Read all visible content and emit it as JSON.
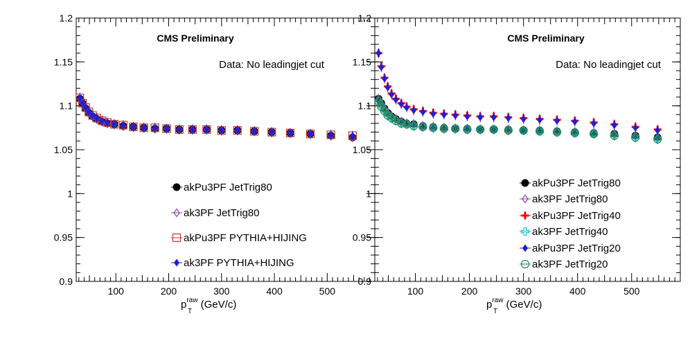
{
  "chart_data": [
    {
      "type": "scatter",
      "title": "CMS Preliminary",
      "annotation": "Data: No leadingjet cut",
      "xlabel": "p_T^raw (GeV/c)",
      "xlabel_parts": {
        "main": "p",
        "sub": "T",
        "sup": "raw",
        "rest": " (GeV/c)"
      },
      "ylabel": "",
      "xlim": [
        25,
        590
      ],
      "ylim": [
        0.9,
        1.2
      ],
      "x_ticks": [
        100,
        200,
        300,
        400,
        500
      ],
      "y_ticks": [
        0.9,
        0.95,
        1,
        1.05,
        1.1,
        1.15,
        1.2
      ],
      "y_tick_labels": [
        "0.9",
        "0.95",
        "1",
        "1.05",
        "1.1",
        "1.15",
        "1.2"
      ],
      "grid": false,
      "legend_position": "bottom-center",
      "x": [
        32,
        37,
        43,
        49,
        56,
        64,
        74,
        84,
        97,
        114,
        133,
        153,
        174,
        196,
        220,
        245,
        272,
        300,
        330,
        362,
        395,
        430,
        468,
        507,
        548,
        592
      ],
      "series": [
        {
          "name": "akPu3PF JetTrig80",
          "marker": "circle-filled",
          "color": "#000000",
          "x": [
            32,
            37,
            43,
            49,
            56,
            64,
            74,
            84,
            97,
            114,
            133,
            153,
            174,
            196,
            220,
            245,
            272,
            300,
            330,
            362,
            395,
            430,
            468,
            507,
            548,
            592
          ],
          "values": [
            1.108,
            1.103,
            1.097,
            1.092,
            1.088,
            1.085,
            1.082,
            1.08,
            1.079,
            1.077,
            1.076,
            1.075,
            1.074,
            1.074,
            1.073,
            1.073,
            1.073,
            1.072,
            1.072,
            1.071,
            1.07,
            1.069,
            1.068,
            1.066,
            1.064,
            1.062
          ]
        },
        {
          "name": "ak3PF JetTrig80",
          "marker": "diamond-open",
          "color": "#8e44ad",
          "x": [
            32,
            37,
            43,
            49,
            56,
            64,
            74,
            84,
            97,
            114,
            133,
            153,
            174,
            196,
            220,
            245,
            272,
            300,
            330,
            362,
            395,
            430,
            468,
            507,
            548,
            592
          ],
          "values": [
            1.108,
            1.103,
            1.097,
            1.092,
            1.088,
            1.085,
            1.082,
            1.08,
            1.079,
            1.077,
            1.076,
            1.075,
            1.074,
            1.074,
            1.073,
            1.073,
            1.073,
            1.072,
            1.072,
            1.071,
            1.07,
            1.069,
            1.068,
            1.066,
            1.064,
            1.062
          ]
        },
        {
          "name": "akPu3PF PYTHIA+HIJING",
          "marker": "square-open",
          "color": "#c0392b",
          "x": [
            32,
            37,
            43,
            49,
            56,
            64,
            74,
            84,
            97,
            114,
            133,
            153,
            174,
            196,
            220,
            245,
            272,
            300,
            330,
            362,
            395,
            430,
            468,
            507,
            548,
            592
          ],
          "values": [
            1.109,
            1.103,
            1.098,
            1.093,
            1.089,
            1.086,
            1.083,
            1.081,
            1.079,
            1.078,
            1.076,
            1.075,
            1.075,
            1.074,
            1.073,
            1.073,
            1.073,
            1.072,
            1.072,
            1.071,
            1.07,
            1.069,
            1.068,
            1.067,
            1.066,
            1.064
          ]
        },
        {
          "name": "ak3PF PYTHIA+HIJING",
          "marker": "diamond-filled",
          "color": "#1f1fd6",
          "x": [
            32,
            37,
            43,
            49,
            56,
            64,
            74,
            84,
            97,
            114,
            133,
            153,
            174,
            196,
            220,
            245,
            272,
            300,
            330,
            362,
            395,
            430,
            468,
            507,
            548,
            592
          ],
          "values": [
            1.109,
            1.103,
            1.098,
            1.093,
            1.089,
            1.086,
            1.083,
            1.081,
            1.079,
            1.078,
            1.076,
            1.075,
            1.075,
            1.074,
            1.073,
            1.073,
            1.073,
            1.072,
            1.072,
            1.071,
            1.07,
            1.069,
            1.068,
            1.067,
            1.066,
            1.066
          ]
        }
      ]
    },
    {
      "type": "scatter",
      "title": "CMS Preliminary",
      "annotation": "Data: No leadingjet cut",
      "xlabel": "p_T^raw (GeV/c)",
      "xlabel_parts": {
        "main": "p",
        "sub": "T",
        "sup": "raw",
        "rest": " (GeV/c)"
      },
      "ylabel": "",
      "xlim": [
        25,
        590
      ],
      "ylim": [
        0.9,
        1.2
      ],
      "x_ticks": [
        100,
        200,
        300,
        400,
        500
      ],
      "y_ticks": [
        0.9,
        0.95,
        1,
        1.05,
        1.1,
        1.15,
        1.2
      ],
      "y_tick_labels": [
        "0.9",
        "0.95",
        "1",
        "1.05",
        "1.1",
        "1.15",
        "1.2"
      ],
      "grid": false,
      "legend_position": "bottom-center",
      "series": [
        {
          "name": "akPu3PF JetTrig80",
          "marker": "circle-filled",
          "color": "#000000",
          "x": [
            32,
            37,
            43,
            49,
            56,
            64,
            74,
            84,
            97,
            114,
            133,
            153,
            174,
            196,
            220,
            245,
            272,
            300,
            330,
            362,
            395,
            430,
            468,
            507,
            548,
            592
          ],
          "values": [
            1.108,
            1.103,
            1.097,
            1.092,
            1.088,
            1.085,
            1.082,
            1.08,
            1.079,
            1.077,
            1.076,
            1.075,
            1.074,
            1.074,
            1.073,
            1.073,
            1.073,
            1.072,
            1.072,
            1.071,
            1.07,
            1.069,
            1.068,
            1.066,
            1.064,
            1.062
          ]
        },
        {
          "name": "ak3PF JetTrig80",
          "marker": "diamond-open",
          "color": "#8e44ad",
          "x": [
            32,
            37,
            43,
            49,
            56,
            64,
            74,
            84,
            97,
            114,
            133,
            153,
            174,
            196,
            220,
            245,
            272,
            300,
            330,
            362,
            395,
            430,
            468,
            507,
            548,
            592
          ],
          "values": [
            1.108,
            1.103,
            1.097,
            1.092,
            1.088,
            1.085,
            1.082,
            1.08,
            1.079,
            1.077,
            1.076,
            1.075,
            1.074,
            1.074,
            1.073,
            1.073,
            1.073,
            1.072,
            1.072,
            1.071,
            1.07,
            1.069,
            1.068,
            1.066,
            1.064,
            1.062
          ]
        },
        {
          "name": "akPu3PF JetTrig40",
          "marker": "cross-thick",
          "color": "#ff0000",
          "x": [
            32,
            37,
            43,
            49,
            56,
            64,
            74,
            84,
            97,
            114,
            133,
            153,
            174,
            196,
            220,
            245,
            272,
            300,
            330,
            362,
            395,
            430,
            468,
            507,
            548,
            592
          ],
          "values": [
            1.16,
            1.145,
            1.132,
            1.122,
            1.114,
            1.108,
            1.103,
            1.099,
            1.096,
            1.094,
            1.092,
            1.091,
            1.09,
            1.089,
            1.088,
            1.088,
            1.087,
            1.086,
            1.085,
            1.084,
            1.083,
            1.081,
            1.079,
            1.076,
            1.073,
            1.071
          ]
        },
        {
          "name": "ak3PF JetTrig40",
          "marker": "cross-open",
          "color": "#00c8c8",
          "x": [
            32,
            37,
            43,
            49,
            56,
            64,
            74,
            84,
            97,
            114,
            133,
            153,
            174,
            196,
            220,
            245,
            272,
            300,
            330,
            362,
            395,
            430,
            468,
            507,
            548,
            592
          ],
          "values": [
            1.105,
            1.099,
            1.094,
            1.089,
            1.086,
            1.083,
            1.08,
            1.079,
            1.077,
            1.076,
            1.075,
            1.074,
            1.074,
            1.073,
            1.073,
            1.073,
            1.072,
            1.072,
            1.071,
            1.07,
            1.069,
            1.068,
            1.066,
            1.064,
            1.062,
            1.061
          ]
        },
        {
          "name": "akPu3PF JetTrig20",
          "marker": "diamond-filled",
          "color": "#1f1fd6",
          "x": [
            32,
            37,
            43,
            49,
            56,
            64,
            74,
            84,
            97,
            114,
            133,
            153,
            174,
            196,
            220,
            245,
            272,
            300,
            330,
            362,
            395,
            430,
            468,
            507,
            548,
            592
          ],
          "values": [
            1.16,
            1.144,
            1.131,
            1.121,
            1.113,
            1.107,
            1.102,
            1.098,
            1.095,
            1.093,
            1.091,
            1.09,
            1.089,
            1.088,
            1.087,
            1.087,
            1.086,
            1.085,
            1.084,
            1.083,
            1.082,
            1.08,
            1.078,
            1.075,
            1.072,
            1.07
          ]
        },
        {
          "name": "ak3PF JetTrig20",
          "marker": "circle-open-bar",
          "color": "#2e8b57",
          "x": [
            32,
            37,
            43,
            49,
            56,
            64,
            74,
            84,
            97,
            114,
            133,
            153,
            174,
            196,
            220,
            245,
            272,
            300,
            330,
            362,
            395,
            430,
            468,
            507,
            548,
            592
          ],
          "values": [
            1.105,
            1.099,
            1.094,
            1.089,
            1.086,
            1.083,
            1.08,
            1.079,
            1.077,
            1.076,
            1.075,
            1.074,
            1.074,
            1.073,
            1.073,
            1.073,
            1.072,
            1.072,
            1.071,
            1.07,
            1.069,
            1.068,
            1.066,
            1.064,
            1.062,
            1.061
          ]
        }
      ]
    }
  ]
}
